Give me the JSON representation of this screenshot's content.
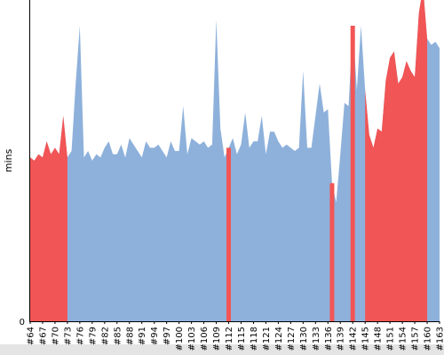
{
  "chart_data": {
    "type": "area",
    "title": "",
    "xlabel": "",
    "ylabel": "mins",
    "ylim": [
      0,
      100
    ],
    "yticks": [
      0
    ],
    "grid": false,
    "legend": "none",
    "colors": {
      "ok": "#8eb1db",
      "slow": "#f25555",
      "baseline": "#e4e4e4"
    },
    "x": [
      64,
      65,
      66,
      67,
      68,
      69,
      70,
      71,
      72,
      73,
      74,
      75,
      76,
      77,
      78,
      79,
      80,
      81,
      82,
      83,
      84,
      85,
      86,
      87,
      88,
      89,
      90,
      91,
      92,
      93,
      94,
      95,
      96,
      97,
      98,
      99,
      100,
      101,
      102,
      103,
      104,
      105,
      106,
      107,
      108,
      109,
      110,
      111,
      112,
      113,
      114,
      115,
      116,
      117,
      118,
      119,
      120,
      121,
      122,
      123,
      124,
      125,
      126,
      127,
      128,
      129,
      130,
      131,
      132,
      133,
      134,
      135,
      136,
      137,
      138,
      139,
      140,
      141,
      142,
      143,
      144,
      145,
      146,
      147,
      148,
      149,
      150,
      151,
      152,
      153,
      154,
      155,
      156,
      157,
      158,
      159,
      160,
      161,
      162,
      163
    ],
    "x_tick_labels": [
      "#64",
      "#67",
      "#70",
      "#73",
      "#76",
      "#79",
      "#82",
      "#85",
      "#88",
      "#91",
      "#94",
      "#97",
      "#100",
      "#103",
      "#106",
      "#109",
      "#112",
      "#115",
      "#118",
      "#121",
      "#124",
      "#127",
      "#130",
      "#133",
      "#136",
      "#139",
      "#142",
      "#145",
      "#148",
      "#151",
      "#154",
      "#157",
      "#160",
      "#163"
    ],
    "values": [
      51,
      50,
      52,
      51,
      56,
      52,
      54,
      52,
      64,
      51,
      53,
      74,
      92,
      51,
      53,
      50,
      52,
      51,
      54,
      56,
      52,
      52,
      55,
      51,
      57,
      55,
      53,
      51,
      56,
      54,
      54,
      55,
      53,
      51,
      56,
      53,
      53,
      67,
      52,
      57,
      56,
      55,
      56,
      54,
      55,
      94,
      60,
      51,
      54,
      57,
      52,
      55,
      65,
      54,
      56,
      56,
      64,
      52,
      59,
      59,
      56,
      54,
      55,
      54,
      53,
      54,
      78,
      54,
      54,
      64,
      74,
      65,
      66,
      43,
      37,
      52,
      68,
      67,
      92,
      72,
      92,
      72,
      58,
      54,
      60,
      59,
      75,
      82,
      84,
      74,
      76,
      81,
      78,
      76,
      96,
      104,
      88,
      86,
      87,
      85
    ],
    "slow": [
      true,
      true,
      true,
      true,
      true,
      true,
      true,
      true,
      true,
      true,
      false,
      false,
      false,
      false,
      false,
      false,
      false,
      false,
      false,
      false,
      false,
      false,
      false,
      false,
      false,
      false,
      false,
      false,
      false,
      false,
      false,
      false,
      false,
      false,
      false,
      false,
      false,
      false,
      false,
      false,
      false,
      false,
      false,
      false,
      false,
      false,
      false,
      false,
      true,
      false,
      false,
      false,
      false,
      false,
      false,
      false,
      false,
      false,
      false,
      false,
      false,
      false,
      false,
      false,
      false,
      false,
      false,
      false,
      false,
      false,
      false,
      false,
      false,
      true,
      false,
      false,
      false,
      false,
      true,
      false,
      false,
      true,
      true,
      true,
      true,
      true,
      true,
      true,
      true,
      true,
      true,
      true,
      true,
      true,
      true,
      true,
      true,
      false,
      false,
      false
    ]
  }
}
